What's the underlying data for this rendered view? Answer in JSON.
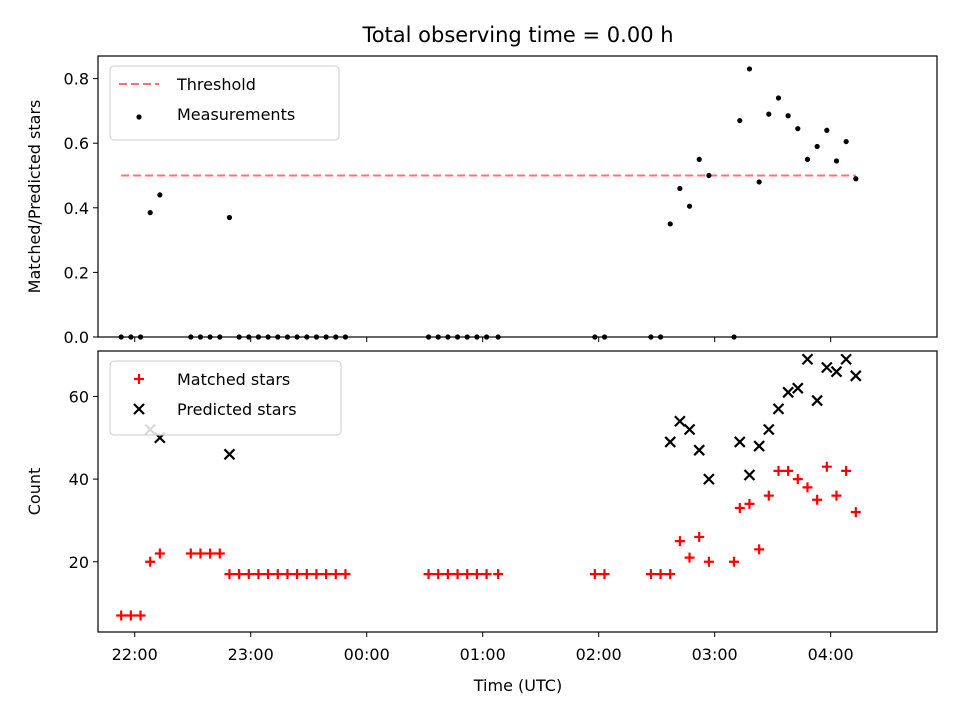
{
  "title": "Total observing time = 0.00 h",
  "xlabel": "Time (UTC)",
  "x_ticks": [
    "22:00",
    "23:00",
    "00:00",
    "01:00",
    "02:00",
    "03:00",
    "04:00"
  ],
  "colors": {
    "threshold": "#ff7070",
    "measurement": "#000000",
    "matched": "#ff0000",
    "predicted": "#000000"
  },
  "chart_data": [
    {
      "type": "scatter",
      "panel": "top",
      "ylabel": "Matched/Predicted stars",
      "xlim": [
        "21:41",
        "04:55"
      ],
      "ylim": [
        0,
        0.87
      ],
      "y_ticks": [
        "0.0",
        "0.2",
        "0.4",
        "0.6",
        "0.8"
      ],
      "legend_position": "top-left",
      "threshold": {
        "name": "Threshold",
        "value": 0.5,
        "x_range": [
          "21:53",
          "04:13"
        ],
        "style": "dashed"
      },
      "series": [
        {
          "name": "Measurements",
          "marker": "dot",
          "points": [
            [
              "21:53",
              0.0
            ],
            [
              "21:58",
              0.0
            ],
            [
              "22:03",
              0.0
            ],
            [
              "22:08",
              0.385
            ],
            [
              "22:13",
              0.44
            ],
            [
              "22:29",
              0.0
            ],
            [
              "22:34",
              0.0
            ],
            [
              "22:39",
              0.0
            ],
            [
              "22:44",
              0.0
            ],
            [
              "22:49",
              0.37
            ],
            [
              "22:54",
              0.0
            ],
            [
              "22:59",
              0.0
            ],
            [
              "23:04",
              0.0
            ],
            [
              "23:09",
              0.0
            ],
            [
              "23:14",
              0.0
            ],
            [
              "23:19",
              0.0
            ],
            [
              "23:24",
              0.0
            ],
            [
              "23:29",
              0.0
            ],
            [
              "23:34",
              0.0
            ],
            [
              "23:39",
              0.0
            ],
            [
              "23:44",
              0.0
            ],
            [
              "23:49",
              0.0
            ],
            [
              "00:32",
              0.0
            ],
            [
              "00:37",
              0.0
            ],
            [
              "00:42",
              0.0
            ],
            [
              "00:47",
              0.0
            ],
            [
              "00:52",
              0.0
            ],
            [
              "00:57",
              0.0
            ],
            [
              "01:02",
              0.0
            ],
            [
              "01:08",
              0.0
            ],
            [
              "01:58",
              0.0
            ],
            [
              "02:03",
              0.0
            ],
            [
              "02:27",
              0.0
            ],
            [
              "02:32",
              0.0
            ],
            [
              "02:37",
              0.35
            ],
            [
              "02:42",
              0.46
            ],
            [
              "02:47",
              0.405
            ],
            [
              "02:52",
              0.55
            ],
            [
              "02:57",
              0.5
            ],
            [
              "03:10",
              0.0
            ],
            [
              "03:13",
              0.67
            ],
            [
              "03:18",
              0.83
            ],
            [
              "03:23",
              0.48
            ],
            [
              "03:28",
              0.69
            ],
            [
              "03:33",
              0.74
            ],
            [
              "03:38",
              0.685
            ],
            [
              "03:43",
              0.645
            ],
            [
              "03:48",
              0.55
            ],
            [
              "03:53",
              0.59
            ],
            [
              "03:58",
              0.64
            ],
            [
              "04:03",
              0.545
            ],
            [
              "04:08",
              0.605
            ],
            [
              "04:13",
              0.49
            ]
          ]
        }
      ]
    },
    {
      "type": "scatter",
      "panel": "bottom",
      "ylabel": "Count",
      "xlim": [
        "21:41",
        "04:55"
      ],
      "ylim": [
        3,
        71
      ],
      "y_ticks": [
        "20",
        "40",
        "60"
      ],
      "legend_position": "top-left",
      "series": [
        {
          "name": "Matched stars",
          "marker": "plus",
          "points": [
            [
              "21:53",
              7
            ],
            [
              "21:58",
              7
            ],
            [
              "22:03",
              7
            ],
            [
              "22:08",
              20
            ],
            [
              "22:13",
              22
            ],
            [
              "22:29",
              22
            ],
            [
              "22:34",
              22
            ],
            [
              "22:39",
              22
            ],
            [
              "22:44",
              22
            ],
            [
              "22:49",
              17
            ],
            [
              "22:54",
              17
            ],
            [
              "22:59",
              17
            ],
            [
              "23:04",
              17
            ],
            [
              "23:09",
              17
            ],
            [
              "23:14",
              17
            ],
            [
              "23:19",
              17
            ],
            [
              "23:24",
              17
            ],
            [
              "23:29",
              17
            ],
            [
              "23:34",
              17
            ],
            [
              "23:39",
              17
            ],
            [
              "23:44",
              17
            ],
            [
              "23:49",
              17
            ],
            [
              "00:32",
              17
            ],
            [
              "00:37",
              17
            ],
            [
              "00:42",
              17
            ],
            [
              "00:47",
              17
            ],
            [
              "00:52",
              17
            ],
            [
              "00:57",
              17
            ],
            [
              "01:02",
              17
            ],
            [
              "01:08",
              17
            ],
            [
              "01:58",
              17
            ],
            [
              "02:03",
              17
            ],
            [
              "02:27",
              17
            ],
            [
              "02:32",
              17
            ],
            [
              "02:37",
              17
            ],
            [
              "02:42",
              25
            ],
            [
              "02:47",
              21
            ],
            [
              "02:52",
              26
            ],
            [
              "02:57",
              20
            ],
            [
              "03:10",
              20
            ],
            [
              "03:13",
              33
            ],
            [
              "03:18",
              34
            ],
            [
              "03:23",
              23
            ],
            [
              "03:28",
              36
            ],
            [
              "03:33",
              42
            ],
            [
              "03:38",
              42
            ],
            [
              "03:43",
              40
            ],
            [
              "03:48",
              38
            ],
            [
              "03:53",
              35
            ],
            [
              "03:58",
              43
            ],
            [
              "04:03",
              36
            ],
            [
              "04:08",
              42
            ],
            [
              "04:13",
              32
            ]
          ]
        },
        {
          "name": "Predicted stars",
          "marker": "x",
          "points": [
            [
              "22:08",
              52
            ],
            [
              "22:13",
              50
            ],
            [
              "22:49",
              46
            ],
            [
              "02:37",
              49
            ],
            [
              "02:42",
              54
            ],
            [
              "02:47",
              52
            ],
            [
              "02:52",
              47
            ],
            [
              "02:57",
              40
            ],
            [
              "03:13",
              49
            ],
            [
              "03:18",
              41
            ],
            [
              "03:23",
              48
            ],
            [
              "03:28",
              52
            ],
            [
              "03:33",
              57
            ],
            [
              "03:38",
              61
            ],
            [
              "03:43",
              62
            ],
            [
              "03:48",
              69
            ],
            [
              "03:53",
              59
            ],
            [
              "03:58",
              67
            ],
            [
              "04:03",
              66
            ],
            [
              "04:08",
              69
            ],
            [
              "04:13",
              65
            ]
          ]
        }
      ]
    }
  ]
}
